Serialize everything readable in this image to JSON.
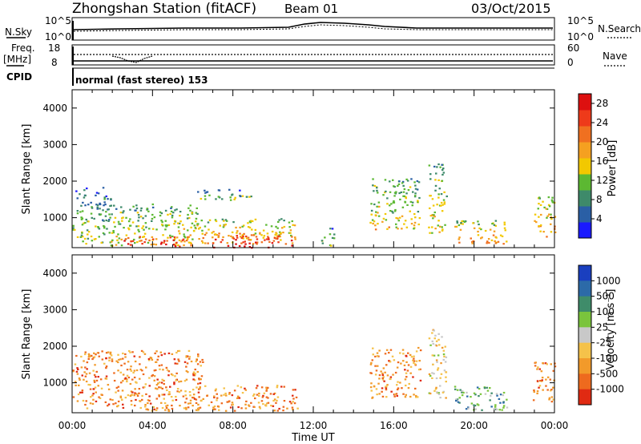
{
  "header": {
    "station": "Zhongshan Station (fitACF)",
    "beam": "Beam 01",
    "date": "03/Oct/2015"
  },
  "top_panels": {
    "nsky_label": "N.Sky",
    "nsearch_label": "N.Search",
    "nsky_ticks": [
      "10^5",
      "10^0"
    ],
    "nsearch_ticks": [
      "10^5",
      "10^0"
    ],
    "freq_label_1": "Freq.",
    "freq_label_2": "[MHz]",
    "freq_ticks": [
      "18",
      "8"
    ],
    "nave_label": "Nave",
    "nave_ticks": [
      "60",
      "0"
    ],
    "cpid_label": "CPID",
    "cpid_text": "normal (fast stereo) 153"
  },
  "chart_data": [
    {
      "type": "heatmap",
      "name": "power",
      "ylabel": "Slant Range [km]",
      "xlabel": "",
      "xlim": [
        0,
        24
      ],
      "ylim": [
        180,
        4500
      ],
      "x_ticks": [
        "00:00",
        "04:00",
        "08:00",
        "12:00",
        "16:00",
        "20:00",
        "00:00"
      ],
      "y_ticks": [
        1000,
        2000,
        3000,
        4000
      ],
      "colorbar": {
        "label": "Power [dB]",
        "ticks": [
          4,
          8,
          12,
          16,
          20,
          24,
          28
        ],
        "range": [
          0,
          30
        ],
        "colors": [
          "#1a1aff",
          "#2a5fa5",
          "#3e8a6a",
          "#5cb832",
          "#f2c800",
          "#f5a020",
          "#f07020",
          "#ee3a1a",
          "#dd1010"
        ]
      },
      "echo_regions": [
        {
          "t0": 0.0,
          "t1": 1.9,
          "r0": 300,
          "r1": 1850,
          "level": "low"
        },
        {
          "t0": 1.9,
          "t1": 6.2,
          "r0": 250,
          "r1": 1400,
          "level": "mixed"
        },
        {
          "t0": 2.5,
          "t1": 5.8,
          "r0": 230,
          "r1": 500,
          "level": "high"
        },
        {
          "t0": 6.0,
          "t1": 11.2,
          "r0": 300,
          "r1": 1000,
          "level": "mid"
        },
        {
          "t0": 7.0,
          "t1": 10.9,
          "r0": 200,
          "r1": 550,
          "level": "high"
        },
        {
          "t0": 6.2,
          "t1": 9.0,
          "r0": 1500,
          "r1": 1800,
          "level": "low"
        },
        {
          "t0": 12.3,
          "t1": 13.0,
          "r0": 250,
          "r1": 750,
          "level": "low"
        },
        {
          "t0": 14.8,
          "t1": 17.3,
          "r0": 700,
          "r1": 2100,
          "level": "mixed"
        },
        {
          "t0": 17.7,
          "t1": 18.6,
          "r0": 600,
          "r1": 2500,
          "level": "mixed"
        },
        {
          "t0": 19.0,
          "t1": 21.6,
          "r0": 300,
          "r1": 950,
          "level": "mid"
        },
        {
          "t0": 22.9,
          "t1": 24.0,
          "r0": 500,
          "r1": 1600,
          "level": "mid"
        }
      ]
    },
    {
      "type": "heatmap",
      "name": "velocity",
      "ylabel": "Slant Range [km]",
      "xlabel": "Time UT",
      "xlim": [
        0,
        24
      ],
      "ylim": [
        180,
        4500
      ],
      "x_ticks": [
        "00:00",
        "04:00",
        "08:00",
        "12:00",
        "16:00",
        "20:00",
        "00:00"
      ],
      "y_ticks": [
        1000,
        2000,
        3000,
        4000
      ],
      "colorbar": {
        "label": "Velocity [m s⁻¹]",
        "ticks": [
          "1000",
          "500",
          "100",
          "25",
          "-25",
          "-100",
          "-500",
          "-1000"
        ],
        "colors": [
          "#1a3fbf",
          "#2c6aa8",
          "#3f8c6a",
          "#7ac43c",
          "#c8c8c8",
          "#f5c24a",
          "#f29a2a",
          "#ee6a1e",
          "#e02a12"
        ]
      },
      "echo_regions": [
        {
          "t0": 0.0,
          "t1": 6.5,
          "r0": 250,
          "r1": 1900,
          "sense": "negative"
        },
        {
          "t0": 6.0,
          "t1": 11.2,
          "r0": 250,
          "r1": 950,
          "sense": "negative"
        },
        {
          "t0": 14.8,
          "t1": 17.3,
          "r0": 600,
          "r1": 2000,
          "sense": "negative"
        },
        {
          "t0": 17.7,
          "t1": 18.6,
          "r0": 600,
          "r1": 2500,
          "sense": "mixed"
        },
        {
          "t0": 19.0,
          "t1": 21.6,
          "r0": 250,
          "r1": 950,
          "sense": "positive"
        },
        {
          "t0": 22.9,
          "t1": 24.0,
          "r0": 500,
          "r1": 1600,
          "sense": "negative"
        }
      ]
    }
  ]
}
